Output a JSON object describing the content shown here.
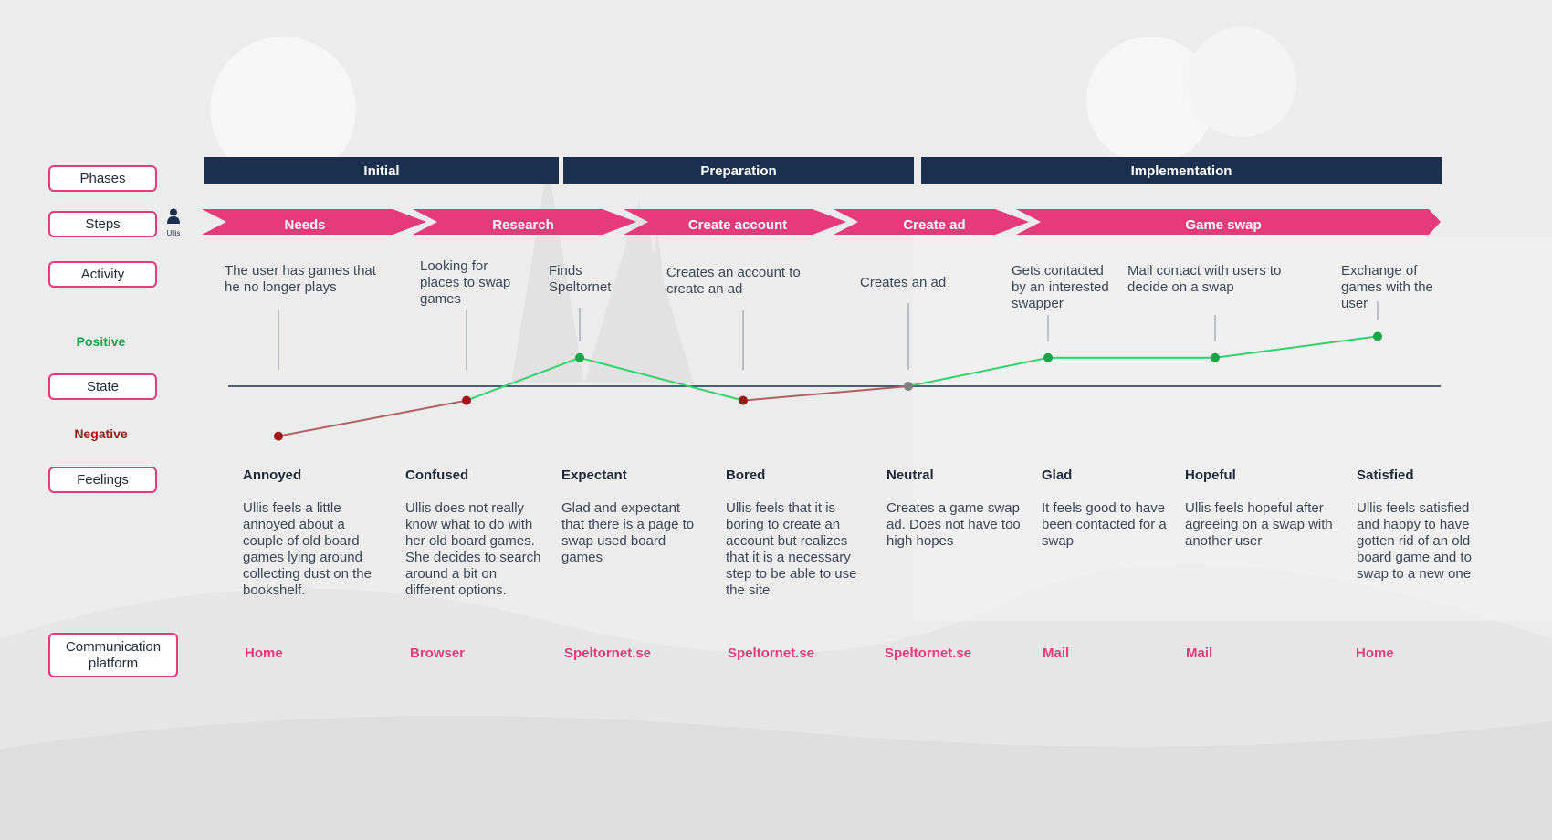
{
  "colors": {
    "navy": "#1b2f4e",
    "pink": "#e63b7a",
    "positive": "#1aa44a",
    "negative": "#a01515",
    "neutral": "#808080",
    "up_line": "#2fd36a",
    "down_line": "#b06060"
  },
  "row_labels": {
    "phases": "Phases",
    "steps": "Steps",
    "activity": "Activity",
    "positive": "Positive",
    "state": "State",
    "negative": "Negative",
    "feelings": "Feelings",
    "platform": "Communication platform"
  },
  "persona": {
    "icon": "person-icon",
    "name": "Ullis"
  },
  "phases": [
    "Initial",
    "Preparation",
    "Implementation"
  ],
  "steps": [
    "Needs",
    "Research",
    "Create account",
    "Create ad",
    "Game swap"
  ],
  "activities": [
    "The user has games that he no longer plays",
    "Looking for places to swap games",
    "Finds Speltornet",
    "Creates an account to create an ad",
    "Creates an ad",
    "Gets contacted by an interested swapper",
    "Mail contact with users to decide on a swap",
    "Exchange of games with the user"
  ],
  "state_levels": {
    "scale": "-1 = negative, 0 = neutral, 1 = positive",
    "values": [
      -0.7,
      -0.2,
      0.4,
      -0.2,
      0.0,
      0.4,
      0.4,
      0.7
    ]
  },
  "feelings": [
    {
      "title": "Annoyed",
      "text": "Ullis feels a little annoyed about a couple of old board games lying around collecting dust on the bookshelf."
    },
    {
      "title": "Confused",
      "text": "Ullis does not really know what to do with her old board games. She decides to search around a bit on different options."
    },
    {
      "title": "Expectant",
      "text": "Glad and expectant that there is a page to swap used board games"
    },
    {
      "title": "Bored",
      "text": "Ullis feels that it is boring to create an account but realizes that it is a necessary step to be able to use the site"
    },
    {
      "title": "Neutral",
      "text": "Creates a game swap ad. Does not have too high hopes"
    },
    {
      "title": "Glad",
      "text": "It feels good to have been contacted for a swap"
    },
    {
      "title": "Hopeful",
      "text": "Ullis feels hopeful after agreeing on a swap with another user"
    },
    {
      "title": "Satisfied",
      "text": "Ullis feels satisfied and happy to have gotten rid of an old board game and to swap to a new one"
    }
  ],
  "platforms": [
    "Home",
    "Browser",
    "Speltornet.se",
    "Speltornet.se",
    "Speltornet.se",
    "Mail",
    "Mail",
    "Home"
  ]
}
